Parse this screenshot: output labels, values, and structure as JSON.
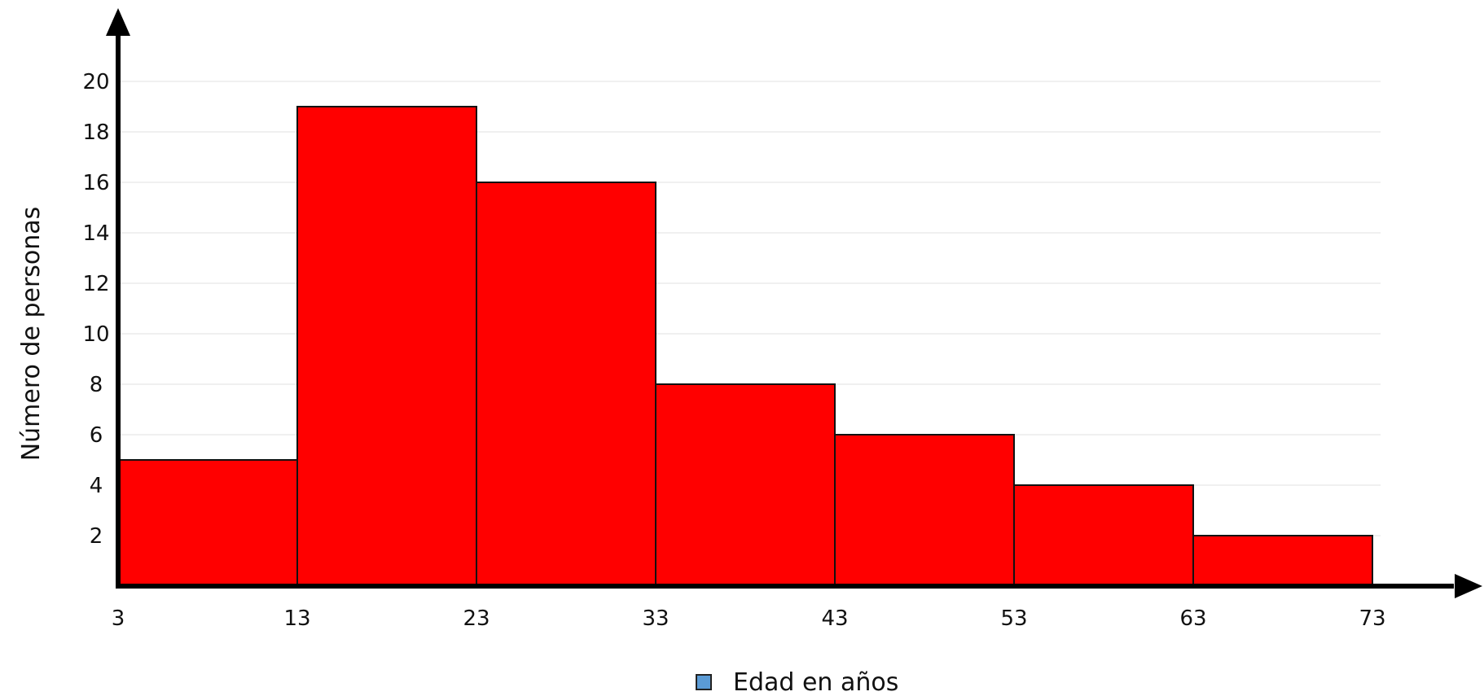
{
  "chart_data": {
    "type": "bar",
    "variant": "histogram",
    "bins": [
      {
        "from": 3,
        "to": 13,
        "value": 5
      },
      {
        "from": 13,
        "to": 23,
        "value": 19
      },
      {
        "from": 23,
        "to": 33,
        "value": 16
      },
      {
        "from": 33,
        "to": 43,
        "value": 8
      },
      {
        "from": 43,
        "to": 53,
        "value": 6
      },
      {
        "from": 53,
        "to": 63,
        "value": 4
      },
      {
        "from": 63,
        "to": 73,
        "value": 2
      }
    ],
    "x_ticks": [
      "3",
      "13",
      "23",
      "33",
      "43",
      "53",
      "63",
      "73"
    ],
    "y_ticks": [
      "2",
      "4",
      "6",
      "8",
      "10",
      "12",
      "14",
      "16",
      "18",
      "20"
    ],
    "xlim": [
      3,
      73
    ],
    "ylim": [
      0,
      20
    ],
    "ylabel": "Número de personas",
    "legend": {
      "label": "Edad en años",
      "position": "bottom-center",
      "swatch_color": "#5b9bd5"
    },
    "bar_color": "#ff0000",
    "bar_border_color": "#111111",
    "gridlines": "horizontal, faint",
    "grid_color": "#ececec"
  }
}
